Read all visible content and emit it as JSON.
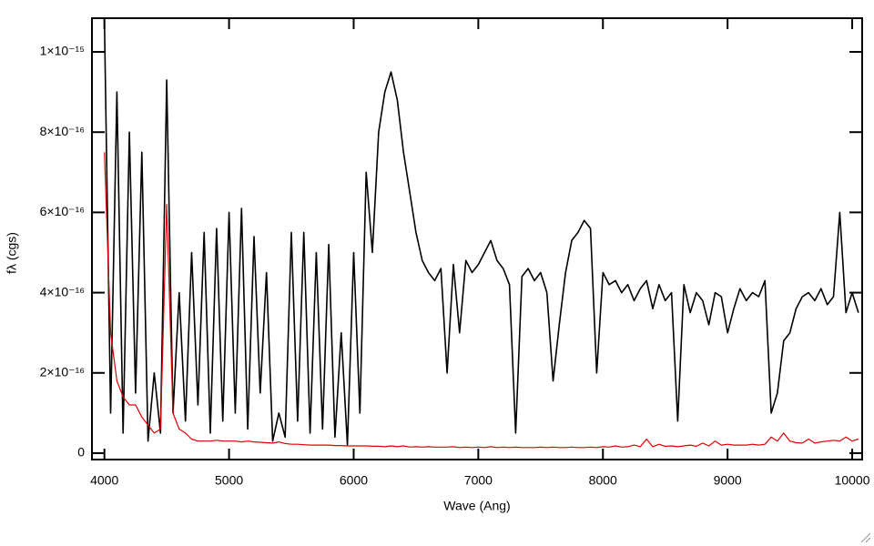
{
  "chart_data": {
    "type": "line",
    "xlabel": "Wave (Ang)",
    "ylabel": "fλ (cgs)",
    "x": [
      4000,
      4050,
      4100,
      4150,
      4200,
      4250,
      4300,
      4350,
      4400,
      4450,
      4500,
      4550,
      4600,
      4650,
      4700,
      4750,
      4800,
      4850,
      4900,
      4950,
      5000,
      5050,
      5100,
      5150,
      5200,
      5250,
      5300,
      5350,
      5400,
      5450,
      5500,
      5550,
      5600,
      5650,
      5700,
      5750,
      5800,
      5850,
      5900,
      5950,
      6000,
      6050,
      6100,
      6150,
      6200,
      6250,
      6300,
      6350,
      6400,
      6450,
      6500,
      6550,
      6600,
      6650,
      6700,
      6750,
      6800,
      6850,
      6900,
      6950,
      7000,
      7050,
      7100,
      7150,
      7200,
      7250,
      7300,
      7350,
      7400,
      7450,
      7500,
      7550,
      7600,
      7650,
      7700,
      7750,
      7800,
      7850,
      7900,
      7950,
      8000,
      8050,
      8100,
      8150,
      8200,
      8250,
      8300,
      8350,
      8400,
      8450,
      8500,
      8550,
      8600,
      8650,
      8700,
      8750,
      8800,
      8850,
      8900,
      8950,
      9000,
      9050,
      9100,
      9150,
      9200,
      9250,
      9300,
      9350,
      9400,
      9450,
      9500,
      9550,
      9600,
      9650,
      9700,
      9750,
      9800,
      9850,
      9900,
      9950,
      10000,
      10050
    ],
    "series": [
      {
        "color": "#000000",
        "values": [
          1.08e-15,
          1e-16,
          9e-16,
          5e-17,
          8e-16,
          1.5e-16,
          7.5e-16,
          3e-17,
          2e-16,
          5e-17,
          9.3e-16,
          1e-16,
          4e-16,
          8e-17,
          5e-16,
          1.2e-16,
          5.5e-16,
          5e-17,
          5.6e-16,
          8e-17,
          6e-16,
          1e-16,
          6.1e-16,
          6e-17,
          5.4e-16,
          1.5e-16,
          4.5e-16,
          3e-17,
          1e-16,
          4e-17,
          5.5e-16,
          8e-17,
          5.5e-16,
          5e-17,
          5e-16,
          6e-17,
          5.2e-16,
          4e-17,
          3e-16,
          2e-17,
          5e-16,
          1e-16,
          7e-16,
          5e-16,
          8e-16,
          9e-16,
          9.5e-16,
          8.8e-16,
          7.5e-16,
          6.5e-16,
          5.5e-16,
          4.8e-16,
          4.5e-16,
          4.3e-16,
          4.6e-16,
          2e-16,
          4.7e-16,
          3e-16,
          4.8e-16,
          4.5e-16,
          4.7e-16,
          5e-16,
          5.3e-16,
          4.8e-16,
          4.6e-16,
          4.2e-16,
          5e-17,
          4.4e-16,
          4.6e-16,
          4.3e-16,
          4.5e-16,
          4e-16,
          1.8e-16,
          3.2e-16,
          4.5e-16,
          5.3e-16,
          5.5e-16,
          5.8e-16,
          5.6e-16,
          2e-16,
          4.5e-16,
          4.2e-16,
          4.3e-16,
          4e-16,
          4.2e-16,
          3.8e-16,
          4.1e-16,
          4.3e-16,
          3.6e-16,
          4.2e-16,
          3.8e-16,
          4e-16,
          8e-17,
          4.2e-16,
          3.5e-16,
          4e-16,
          3.8e-16,
          3.2e-16,
          4e-16,
          3.9e-16,
          3e-16,
          3.6e-16,
          4.1e-16,
          3.8e-16,
          4e-16,
          3.9e-16,
          4.3e-16,
          1e-16,
          1.5e-16,
          2.8e-16,
          3e-16,
          3.6e-16,
          3.9e-16,
          4e-16,
          3.8e-16,
          4.1e-16,
          3.7e-16,
          3.9e-16,
          6e-16,
          3.5e-16,
          4e-16,
          3.5e-16
        ]
      },
      {
        "color": "#e00000",
        "values": [
          7.5e-16,
          3e-16,
          1.8e-16,
          1.4e-16,
          1.2e-16,
          1.2e-16,
          9e-17,
          7e-17,
          5e-17,
          6e-17,
          6.2e-16,
          1e-16,
          6e-17,
          5e-17,
          3.5e-17,
          3e-17,
          3e-17,
          3e-17,
          3.2e-17,
          3e-17,
          3e-17,
          3e-17,
          2.8e-17,
          3e-17,
          2.8e-17,
          2.7e-17,
          2.6e-17,
          2.5e-17,
          2.8e-17,
          2.4e-17,
          2.2e-17,
          2.2e-17,
          2.1e-17,
          2e-17,
          2e-17,
          2e-17,
          2e-17,
          1.9e-17,
          1.9e-17,
          1.8e-17,
          1.8e-17,
          1.8e-17,
          1.8e-17,
          1.7e-17,
          1.7e-17,
          1.6e-17,
          1.8e-17,
          1.6e-17,
          1.8e-17,
          1.5e-17,
          1.6e-17,
          1.5e-17,
          1.6e-17,
          1.5e-17,
          1.5e-17,
          1.5e-17,
          1.6e-17,
          1.4e-17,
          1.5e-17,
          1.4e-17,
          1.5e-17,
          1.4e-17,
          1.6e-17,
          1.4e-17,
          1.5e-17,
          1.4e-17,
          1.5e-17,
          1.4e-17,
          1.4e-17,
          1.4e-17,
          1.5e-17,
          1.4e-17,
          1.5e-17,
          1.4e-17,
          1.4e-17,
          1.5e-17,
          1.4e-17,
          1.4e-17,
          1.5e-17,
          1.4e-17,
          1.6e-17,
          1.5e-17,
          1.8e-17,
          1.5e-17,
          1.6e-17,
          2e-17,
          1.6e-17,
          3.5e-17,
          1.6e-17,
          2.2e-17,
          1.7e-17,
          1.8e-17,
          1.6e-17,
          1.8e-17,
          2e-17,
          1.7e-17,
          2.5e-17,
          1.8e-17,
          3e-17,
          2e-17,
          2.2e-17,
          2e-17,
          2e-17,
          2e-17,
          2.2e-17,
          2e-17,
          2.2e-17,
          4e-17,
          3e-17,
          5e-17,
          3e-17,
          2.6e-17,
          2.5e-17,
          3.5e-17,
          2.5e-17,
          2.8e-17,
          3e-17,
          3.2e-17,
          3e-17,
          4e-17,
          3e-17,
          3.5e-17
        ]
      }
    ],
    "xlim": [
      3900,
      10080
    ],
    "ylim": [
      -1.6e-17,
      1.084e-15
    ],
    "xticks": [
      4000,
      5000,
      6000,
      7000,
      8000,
      9000,
      10000
    ],
    "yticks": [
      0,
      {
        "value": 2e-16,
        "label": "2×10⁻¹⁶"
      },
      {
        "value": 4e-16,
        "label": "4×10⁻¹⁶"
      },
      {
        "value": 6e-16,
        "label": "6×10⁻¹⁶"
      },
      {
        "value": 8e-16,
        "label": "8×10⁻¹⁶"
      },
      {
        "value": 1e-15,
        "label": "1×10⁻¹⁵"
      }
    ]
  }
}
